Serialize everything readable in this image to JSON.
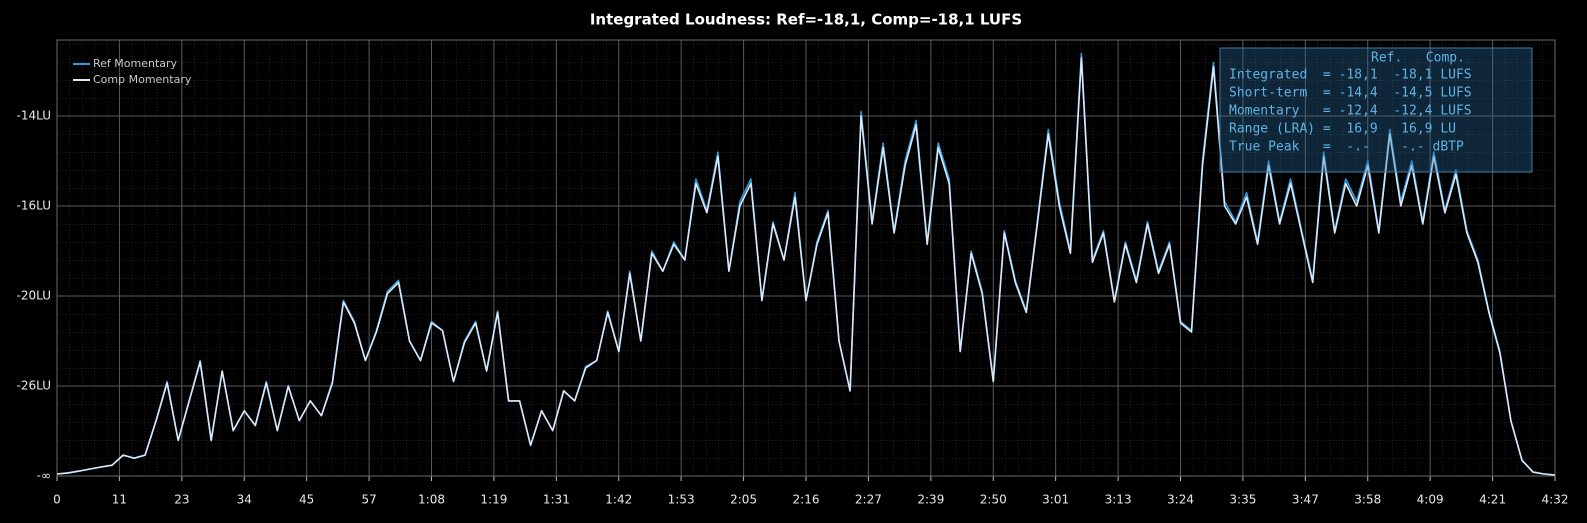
{
  "chart_data": {
    "type": "line",
    "title": "Integrated Loudness: Ref=-18,1, Comp=-18,1 LUFS",
    "legend": "top-left",
    "grid": true,
    "xlim": [
      0,
      272
    ],
    "xticks": [
      0,
      {
        "value": 11.33,
        "label": "11"
      },
      {
        "value": 22.67,
        "label": "23"
      },
      34,
      {
        "value": 45.33,
        "label": "45"
      },
      {
        "value": 56.67,
        "label": "57"
      },
      {
        "value": 68,
        "label": "1:08"
      },
      {
        "value": 79.33,
        "label": "1:19"
      },
      {
        "value": 90.67,
        "label": "1:31"
      },
      {
        "value": 102,
        "label": "1:42"
      },
      {
        "value": 113.33,
        "label": "1:53"
      },
      {
        "value": 124.67,
        "label": "2:05"
      },
      {
        "value": 136,
        "label": "2:16"
      },
      {
        "value": 147.33,
        "label": "2:27"
      },
      {
        "value": 158.67,
        "label": "2:39"
      },
      {
        "value": 170,
        "label": "2:50"
      },
      {
        "value": 181.33,
        "label": "3:01"
      },
      {
        "value": 192.67,
        "label": "3:13"
      },
      {
        "value": 204,
        "label": "3:24"
      },
      {
        "value": 215.33,
        "label": "3:35"
      },
      {
        "value": 226.67,
        "label": "3:47"
      },
      {
        "value": 238,
        "label": "3:58"
      },
      {
        "value": 249.33,
        "label": "4:09"
      },
      {
        "value": 260.67,
        "label": "4:21"
      },
      {
        "value": 272,
        "label": "4:32"
      }
    ],
    "ylim": [
      -70,
      -12.3
    ],
    "yticks": [
      {
        "value": -70,
        "label": "-∞"
      },
      {
        "value": -26,
        "label": "-26LU"
      },
      {
        "value": -20,
        "label": "-20LU"
      },
      {
        "value": -16,
        "label": "-16LU"
      },
      {
        "value": -14,
        "label": "-14LU"
      }
    ],
    "x": [
      0,
      2,
      4,
      6,
      8,
      10,
      12,
      14,
      16,
      18,
      20,
      22,
      24,
      26,
      28,
      30,
      32,
      34,
      36,
      38,
      40,
      42,
      44,
      46,
      48,
      50,
      52,
      54,
      56,
      58,
      60,
      62,
      64,
      66,
      68,
      70,
      72,
      74,
      76,
      78,
      80,
      82,
      84,
      86,
      88,
      90,
      92,
      94,
      96,
      98,
      100,
      102,
      104,
      106,
      108,
      110,
      112,
      114,
      116,
      118,
      120,
      122,
      124,
      126,
      128,
      130,
      132,
      134,
      136,
      138,
      140,
      142,
      144,
      146,
      148,
      150,
      152,
      154,
      156,
      158,
      160,
      162,
      164,
      166,
      168,
      170,
      172,
      174,
      176,
      178,
      180,
      182,
      184,
      186,
      188,
      190,
      192,
      194,
      196,
      198,
      200,
      202,
      204,
      206,
      208,
      210,
      212,
      214,
      216,
      218,
      220,
      222,
      224,
      226,
      228,
      230,
      232,
      234,
      236,
      238,
      240,
      242,
      244,
      246,
      248,
      250,
      252,
      254,
      256,
      258,
      260,
      262,
      264,
      266,
      268,
      270,
      272
    ],
    "series": [
      {
        "name": "Ref Momentary",
        "color": "#2b9be0",
        "values": [
          -69.0,
          -68.5,
          -67.6,
          -66.6,
          -65.6,
          -64.7,
          -59.8,
          -61.3,
          -59.8,
          -42.9,
          -25.7,
          -52.6,
          -33.3,
          -24.3,
          -52.6,
          -25.0,
          -47.8,
          -38.1,
          -45.3,
          -25.7,
          -47.8,
          -26.0,
          -42.9,
          -33.3,
          -40.5,
          -25.7,
          -20.3,
          -21.7,
          -24.3,
          -22.3,
          -19.8,
          -19.3,
          -23.0,
          -24.3,
          -21.7,
          -22.3,
          -25.7,
          -23.0,
          -21.7,
          -25.0,
          -21.0,
          -33.3,
          -33.3,
          -55.0,
          -38.1,
          -47.8,
          -28.4,
          -33.3,
          -24.7,
          -24.3,
          -21.0,
          -23.7,
          -18.9,
          -23.0,
          -18.0,
          -18.9,
          -17.6,
          -18.4,
          -15.4,
          -16.2,
          -14.8,
          -18.9,
          -15.9,
          -15.4,
          -20.3,
          -16.7,
          -18.4,
          -15.7,
          -20.3,
          -17.6,
          -16.2,
          -23.0,
          -28.4,
          -13.9,
          -16.7,
          -14.6,
          -17.1,
          -15.0,
          -14.1,
          -17.6,
          -14.6,
          -15.4,
          -23.7,
          -18.0,
          -19.8,
          -25.7,
          -17.1,
          -19.3,
          -21.0,
          -16.7,
          -14.3,
          -15.9,
          -18.0,
          -12.6,
          -18.4,
          -17.1,
          -20.3,
          -17.6,
          -19.3,
          -16.7,
          -18.9,
          -17.6,
          -21.7,
          -22.3,
          -15.0,
          -12.8,
          -15.9,
          -16.7,
          -15.7,
          -17.6,
          -15.0,
          -16.7,
          -15.4,
          -17.1,
          -19.3,
          -14.8,
          -17.1,
          -15.4,
          -15.9,
          -15.0,
          -17.1,
          -14.3,
          -15.9,
          -15.0,
          -16.7,
          -14.8,
          -16.2,
          -15.2,
          -17.1,
          -18.4,
          -21.0,
          -23.7,
          -42.9,
          -62.3,
          -68.1,
          -69.0,
          -69.5
        ]
      },
      {
        "name": "Comp Momentary",
        "color": "#dce8f6",
        "values": [
          -69.0,
          -68.5,
          -67.6,
          -66.6,
          -65.6,
          -64.7,
          -59.8,
          -61.3,
          -59.8,
          -42.9,
          -25.8,
          -52.6,
          -33.3,
          -24.4,
          -52.6,
          -25.0,
          -47.8,
          -38.1,
          -45.3,
          -25.8,
          -47.8,
          -26.1,
          -42.9,
          -33.3,
          -40.5,
          -25.8,
          -20.4,
          -21.8,
          -24.3,
          -22.4,
          -19.9,
          -19.4,
          -23.0,
          -24.3,
          -21.8,
          -22.3,
          -25.7,
          -23.1,
          -21.8,
          -25.0,
          -21.1,
          -33.3,
          -33.3,
          -55.0,
          -38.1,
          -47.8,
          -28.4,
          -33.3,
          -24.8,
          -24.3,
          -21.1,
          -23.7,
          -19.0,
          -23.0,
          -18.1,
          -18.9,
          -17.7,
          -18.4,
          -15.5,
          -16.3,
          -14.9,
          -18.9,
          -16.0,
          -15.5,
          -20.3,
          -16.8,
          -18.4,
          -15.8,
          -20.3,
          -17.7,
          -16.3,
          -23.0,
          -28.4,
          -14.0,
          -16.8,
          -14.7,
          -17.2,
          -15.1,
          -14.2,
          -17.7,
          -14.7,
          -15.5,
          -23.7,
          -18.1,
          -19.9,
          -25.7,
          -17.2,
          -19.4,
          -21.1,
          -16.8,
          -14.4,
          -16.0,
          -18.1,
          -12.7,
          -18.5,
          -17.2,
          -20.4,
          -17.7,
          -19.4,
          -16.8,
          -19.0,
          -17.7,
          -21.8,
          -22.4,
          -15.1,
          -12.9,
          -16.0,
          -16.8,
          -15.8,
          -17.7,
          -15.1,
          -16.8,
          -15.5,
          -17.2,
          -19.4,
          -14.9,
          -17.2,
          -15.5,
          -16.0,
          -15.1,
          -17.2,
          -14.4,
          -16.0,
          -15.1,
          -16.8,
          -14.9,
          -16.3,
          -15.3,
          -17.2,
          -18.5,
          -21.1,
          -23.8,
          -43.0,
          -62.3,
          -68.1,
          -69.0,
          -69.5
        ]
      }
    ],
    "stats_panel": {
      "header": "Ref.   Comp.",
      "lines": [
        "Integrated  = -18,1  -18,1 LUFS",
        "Short-term  = -14,4  -14,5 LUFS",
        "Momentary   = -12,4  -12,4 LUFS",
        "Range (LRA) =  16,9   16,9 LU",
        "True Peak   =  -.-    -.- dBTP"
      ]
    }
  }
}
